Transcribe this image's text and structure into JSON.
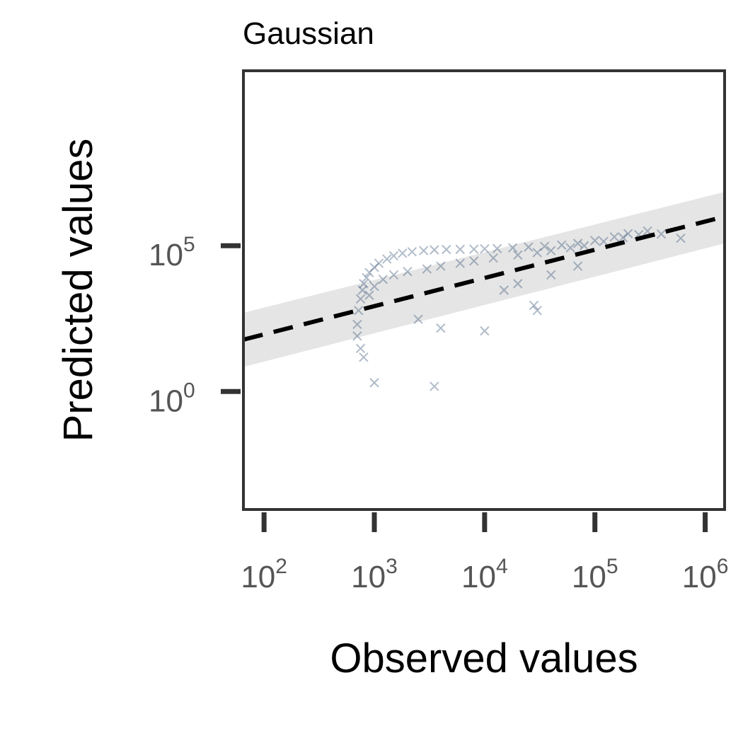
{
  "chart_data": {
    "type": "scatter",
    "title": "Gaussian",
    "xlabel": "Observed values",
    "ylabel": "Predicted values",
    "x_scale": "log",
    "y_scale": "log",
    "xlim": [
      65,
      1500000
    ],
    "ylim": [
      9e-05,
      100000000000
    ],
    "x_ticks": [
      {
        "value": 100,
        "base": "10",
        "exp": "2"
      },
      {
        "value": 1000,
        "base": "10",
        "exp": "3"
      },
      {
        "value": 10000,
        "base": "10",
        "exp": "4"
      },
      {
        "value": 100000,
        "base": "10",
        "exp": "5"
      },
      {
        "value": 1000000,
        "base": "10",
        "exp": "6"
      }
    ],
    "y_ticks": [
      {
        "value": 1,
        "base": "10",
        "exp": "0"
      },
      {
        "value": 100000,
        "base": "10",
        "exp": "5"
      }
    ],
    "reference_line": {
      "style": "dashed",
      "color": "#000000",
      "x": [
        65,
        1500000
      ],
      "y": [
        60,
        1000000
      ]
    },
    "band": {
      "color": "#e5e5e5",
      "x": [
        65,
        1500000
      ],
      "y_lower": [
        7,
        120000
      ],
      "y_upper": [
        500,
        7000000
      ]
    },
    "marker": {
      "shape": "x",
      "color": "#1f3f66"
    },
    "points": [
      [
        700,
        200
      ],
      [
        720,
        600
      ],
      [
        750,
        1500
      ],
      [
        780,
        3000
      ],
      [
        800,
        5000
      ],
      [
        850,
        8000
      ],
      [
        900,
        12000
      ],
      [
        1000,
        18000
      ],
      [
        1100,
        25000
      ],
      [
        1300,
        35000
      ],
      [
        1500,
        45000
      ],
      [
        1800,
        55000
      ],
      [
        2200,
        62000
      ],
      [
        2800,
        68000
      ],
      [
        3500,
        72000
      ],
      [
        4500,
        74000
      ],
      [
        6000,
        75000
      ],
      [
        8000,
        76000
      ],
      [
        10000,
        78000
      ],
      [
        13000,
        80000
      ],
      [
        18000,
        85000
      ],
      [
        25000,
        90000
      ],
      [
        35000,
        95000
      ],
      [
        50000,
        105000
      ],
      [
        70000,
        120000
      ],
      [
        100000,
        150000
      ],
      [
        150000,
        200000
      ],
      [
        200000,
        260000
      ],
      [
        300000,
        320000
      ],
      [
        900,
        2000
      ],
      [
        1000,
        4000
      ],
      [
        1200,
        7000
      ],
      [
        1500,
        10000
      ],
      [
        2000,
        13000
      ],
      [
        3000,
        16000
      ],
      [
        4000,
        20000
      ],
      [
        6000,
        25000
      ],
      [
        8000,
        30000
      ],
      [
        12000,
        38000
      ],
      [
        20000,
        48000
      ],
      [
        30000,
        58000
      ],
      [
        40000,
        68000
      ],
      [
        60000,
        85000
      ],
      [
        80000,
        100000
      ],
      [
        120000,
        140000
      ],
      [
        180000,
        190000
      ],
      [
        250000,
        240000
      ],
      [
        700,
        80
      ],
      [
        750,
        30
      ],
      [
        800,
        15
      ],
      [
        1000,
        2
      ],
      [
        3500,
        1.5
      ],
      [
        2500,
        300
      ],
      [
        4000,
        150
      ],
      [
        10000,
        120
      ],
      [
        28000,
        900
      ],
      [
        30000,
        600
      ],
      [
        15000,
        3000
      ],
      [
        20000,
        5000
      ],
      [
        40000,
        10000
      ],
      [
        70000,
        20000
      ],
      [
        600000,
        180000
      ],
      [
        400000,
        250000
      ]
    ]
  }
}
